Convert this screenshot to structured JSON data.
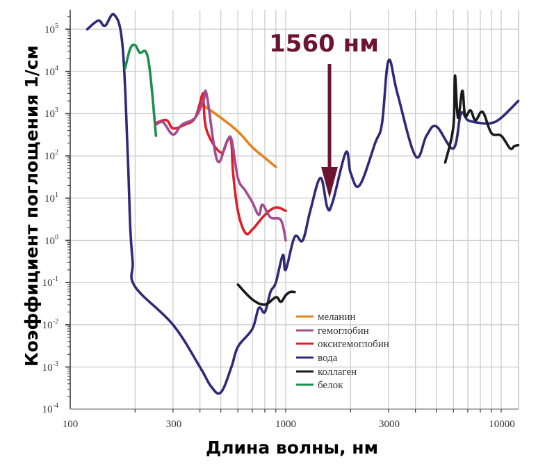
{
  "chart_data": {
    "type": "line",
    "title": "",
    "xlabel": "Длина волны, нм",
    "ylabel": "Коэффициент поглощения 1/см",
    "xscale": "log",
    "yscale": "log",
    "xlim": [
      100,
      12000
    ],
    "ylim": [
      0.0001,
      400000
    ],
    "grid": true,
    "legend_position": "lower-center-right (inside plot)",
    "x_ticks": [
      {
        "value": 100,
        "label": "100"
      },
      {
        "value": 300,
        "label": "300"
      },
      {
        "value": 1000,
        "label": "1000"
      },
      {
        "value": 3000,
        "label": "3000"
      },
      {
        "value": 10000,
        "label": "10000"
      }
    ],
    "y_ticks": [
      {
        "value": 100000,
        "base": "10",
        "exp": "5"
      },
      {
        "value": 10000,
        "base": "10",
        "exp": "4"
      },
      {
        "value": 1000,
        "base": "10",
        "exp": "3"
      },
      {
        "value": 100,
        "base": "10",
        "exp": "2"
      },
      {
        "value": 10,
        "base": "10",
        "exp": "1"
      },
      {
        "value": 1,
        "base": "10",
        "exp": "0"
      },
      {
        "value": 0.1,
        "base": "10",
        "exp": "-1"
      },
      {
        "value": 0.01,
        "base": "10",
        "exp": "-2"
      },
      {
        "value": 0.001,
        "base": "10",
        "exp": "-3"
      },
      {
        "value": 0.0001,
        "base": "10",
        "exp": "-4"
      }
    ],
    "annotation": {
      "text": "1560 нм",
      "x": 1560,
      "color": "#6b1532",
      "type": "down-arrow"
    },
    "series": [
      {
        "name": "меланин",
        "color": "#e8821e",
        "x": [
          420,
          500,
          600,
          700,
          800,
          900
        ],
        "y": [
          1500,
          800,
          380,
          160,
          90,
          55
        ]
      },
      {
        "name": "гемоглобин",
        "color": "#a24d91",
        "x": [
          250,
          270,
          300,
          330,
          380,
          415,
          430,
          480,
          530,
          560,
          600,
          650,
          700,
          750,
          780,
          850,
          950,
          1000
        ],
        "y": [
          550,
          620,
          320,
          550,
          800,
          2000,
          2800,
          80,
          200,
          250,
          30,
          15,
          8,
          4,
          7,
          3.5,
          3,
          1
        ]
      },
      {
        "name": "оксигемоглобин",
        "color": "#dd2027",
        "x": [
          250,
          280,
          300,
          340,
          380,
          410,
          415,
          430,
          500,
          540,
          560,
          570,
          600,
          650,
          700,
          800,
          900,
          1000
        ],
        "y": [
          600,
          700,
          450,
          550,
          800,
          2800,
          2200,
          400,
          120,
          250,
          200,
          40,
          5,
          1.5,
          1.8,
          4,
          6,
          5
        ]
      },
      {
        "name": "вода",
        "color": "#2e2a78",
        "x": [
          120,
          135,
          145,
          160,
          175,
          185,
          190,
          195,
          200,
          300,
          400,
          450,
          500,
          560,
          600,
          700,
          750,
          800,
          850,
          900,
          970,
          1000,
          1100,
          1200,
          1300,
          1450,
          1560,
          1650,
          1900,
          2000,
          2200,
          2600,
          2800,
          3000,
          3300,
          4000,
          4500,
          5000,
          6000,
          6500,
          7000,
          8000,
          9000,
          10000,
          12000
        ],
        "y": [
          100000,
          160000,
          120000,
          220000,
          40000,
          100,
          2,
          0.3,
          0.08,
          0.01,
          0.001,
          0.00035,
          0.00025,
          0.001,
          0.003,
          0.008,
          0.025,
          0.02,
          0.06,
          0.1,
          0.45,
          0.2,
          1.2,
          1,
          5,
          30,
          6,
          8,
          120,
          40,
          20,
          200,
          600,
          18000,
          3000,
          100,
          300,
          500,
          150,
          1000,
          700,
          600,
          600,
          800,
          2000
        ]
      },
      {
        "name": "коллаген",
        "color": "#1a1a1a",
        "x": [
          600,
          700,
          800,
          900,
          950,
          1000,
          1050,
          1100,
          5500,
          6000,
          6100,
          6300,
          6600,
          6800,
          7200,
          7600,
          8200,
          9000,
          10000,
          11000,
          11500,
          12000
        ],
        "y": [
          0.09,
          0.04,
          0.03,
          0.045,
          0.035,
          0.05,
          0.06,
          0.06,
          70,
          500,
          8000,
          800,
          3500,
          900,
          1200,
          700,
          1100,
          350,
          300,
          150,
          170,
          180
        ]
      },
      {
        "name": "белок",
        "color": "#1b8f4a",
        "x": [
          180,
          190,
          200,
          210,
          230,
          250
        ],
        "y": [
          12000,
          35000,
          42000,
          28000,
          20000,
          300
        ]
      }
    ]
  },
  "legend": {
    "items": [
      {
        "label": "меланин",
        "color": "#e8821e"
      },
      {
        "label": "гемоглобин",
        "color": "#a24d91"
      },
      {
        "label": "оксигемоглобин",
        "color": "#dd2027"
      },
      {
        "label": "вода",
        "color": "#2e2a78"
      },
      {
        "label": "коллаген",
        "color": "#1a1a1a"
      },
      {
        "label": "белок",
        "color": "#1b8f4a"
      }
    ]
  },
  "axes": {
    "x_title": "Длина волны, нм",
    "y_title": "Коэффициент поглощения 1/см",
    "x_labels": [
      "100",
      "300",
      "1000",
      "3000",
      "10000"
    ],
    "y_bases": [
      "10",
      "10",
      "10",
      "10",
      "10",
      "10",
      "10",
      "10",
      "10",
      "10"
    ],
    "y_exps": [
      "5",
      "4",
      "3",
      "2",
      "1",
      "0",
      "-1",
      "-2",
      "-3",
      "-4"
    ]
  },
  "annotation": {
    "label": "1560 нм",
    "color": "#6b1532"
  }
}
